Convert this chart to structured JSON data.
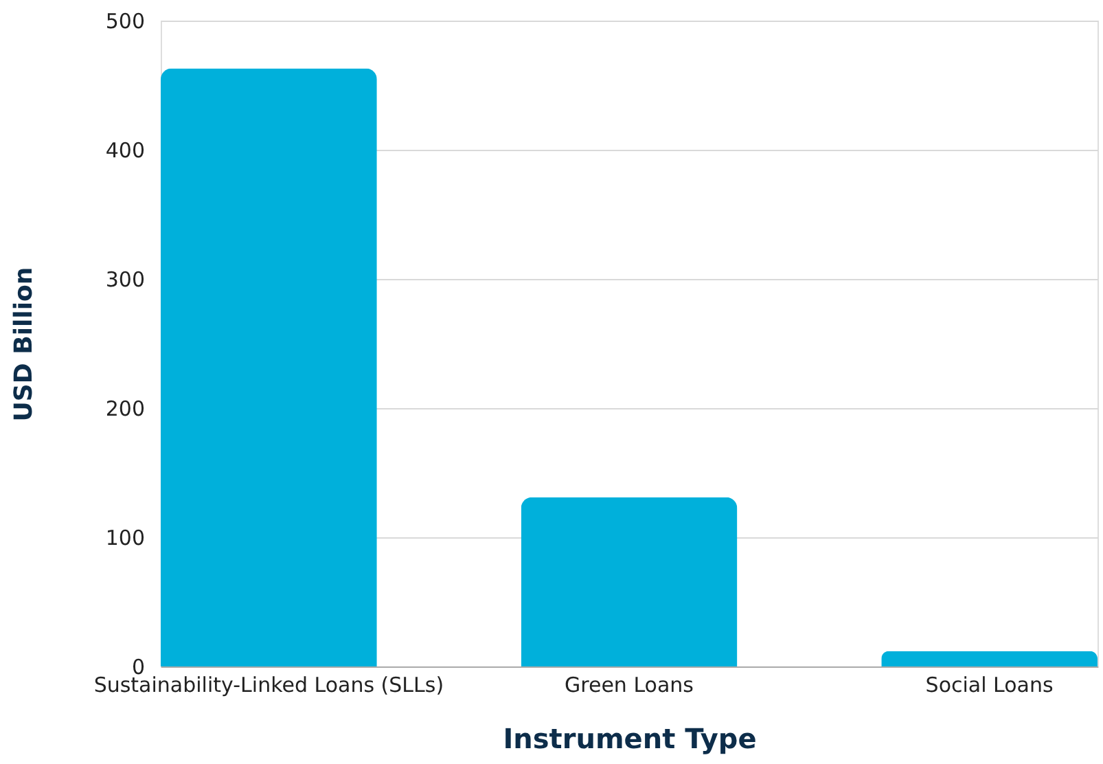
{
  "chart_data": {
    "type": "bar",
    "xlabel": "Instrument Type",
    "ylabel": "USD Billion",
    "categories": [
      "Sustainability-Linked Loans (SLLs)",
      "Green Loans",
      "Social Loans"
    ],
    "values": [
      463,
      131,
      12
    ],
    "color": "#00b0db",
    "ylim": [
      0,
      500
    ],
    "yticks": [
      0,
      100,
      200,
      300,
      400,
      500
    ],
    "grid": "y"
  }
}
